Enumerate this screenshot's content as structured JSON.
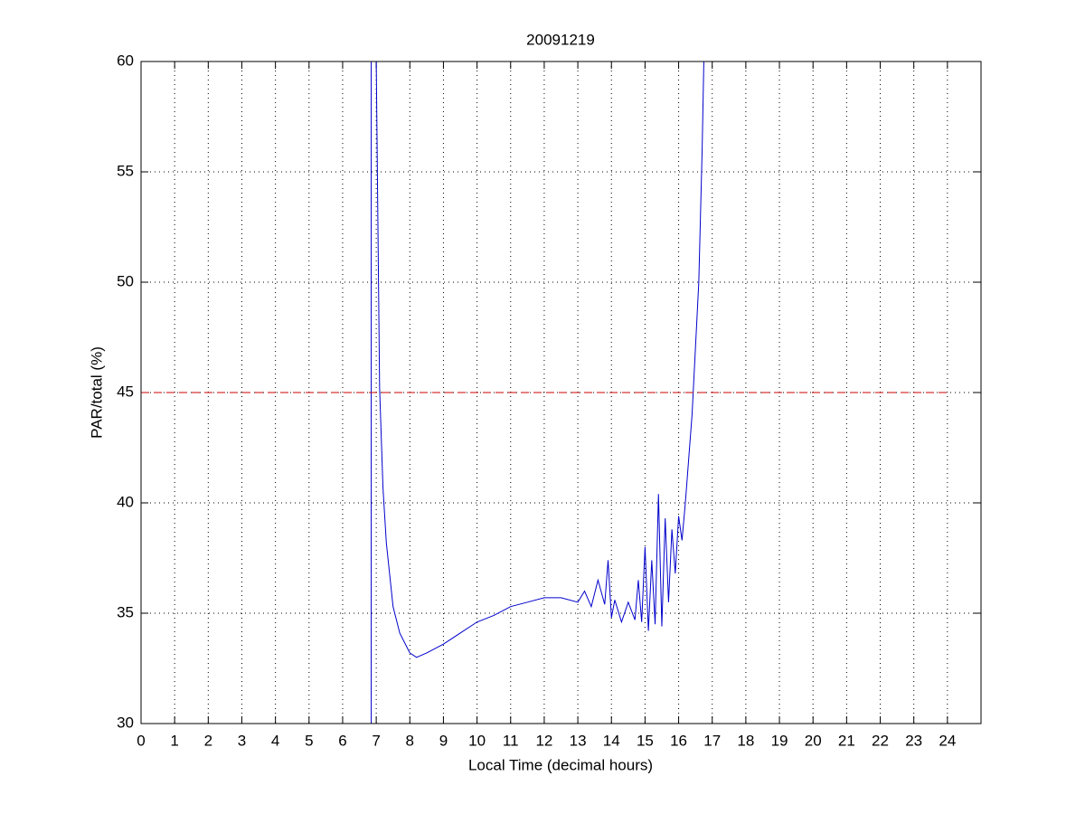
{
  "chart_data": {
    "type": "line",
    "title": "20091219",
    "x_label": "Local Time (decimal hours)",
    "y_label": "PAR/total (%)",
    "xlim": [
      0,
      25
    ],
    "xticks": [
      0,
      1,
      2,
      3,
      4,
      5,
      6,
      7,
      8,
      9,
      10,
      11,
      12,
      13,
      14,
      15,
      16,
      17,
      18,
      19,
      20,
      21,
      22,
      23,
      24
    ],
    "ylim": [
      30,
      60
    ],
    "yticks": [
      30,
      35,
      40,
      45,
      50,
      55,
      60
    ],
    "grid": true,
    "series": [
      {
        "color": "#0000cc",
        "dashed": false,
        "x": [
          7.0,
          7.1,
          7.2,
          7.3,
          7.5,
          7.7,
          7.9,
          8.0,
          8.2,
          8.5,
          9.0,
          9.5,
          10.0,
          10.5,
          11.0,
          11.5,
          12.0,
          12.5,
          13.0,
          13.2,
          13.4,
          13.6,
          13.8,
          13.9,
          14.0,
          14.1,
          14.3,
          14.5,
          14.7,
          14.8,
          14.9,
          15.0,
          15.1,
          15.2,
          15.3,
          15.4,
          15.5,
          15.6,
          15.7,
          15.8,
          15.9,
          16.0,
          16.1,
          16.2,
          16.3,
          16.4,
          16.5,
          16.6,
          16.7,
          16.75
        ],
        "values": [
          60,
          45.2,
          40.7,
          38.2,
          35.3,
          34.1,
          33.5,
          33.2,
          33.0,
          33.2,
          33.6,
          34.1,
          34.6,
          34.9,
          35.3,
          35.5,
          35.7,
          35.7,
          35.5,
          36.0,
          35.3,
          36.5,
          35.4,
          37.4,
          34.8,
          35.6,
          34.6,
          35.5,
          34.7,
          36.5,
          34.6,
          38.0,
          34.2,
          37.4,
          34.5,
          40.4,
          34.4,
          39.3,
          35.5,
          38.8,
          36.8,
          39.4,
          38.3,
          40.0,
          42.0,
          44.0,
          47.0,
          50.0,
          56.0,
          60
        ]
      },
      {
        "color": "#0000cc",
        "dashed": false,
        "x": [
          6.85,
          6.85
        ],
        "values": [
          30,
          60
        ]
      },
      {
        "color": "#cc0000",
        "dashed": true,
        "x": [
          0,
          24
        ],
        "values": [
          45,
          45
        ]
      }
    ]
  }
}
